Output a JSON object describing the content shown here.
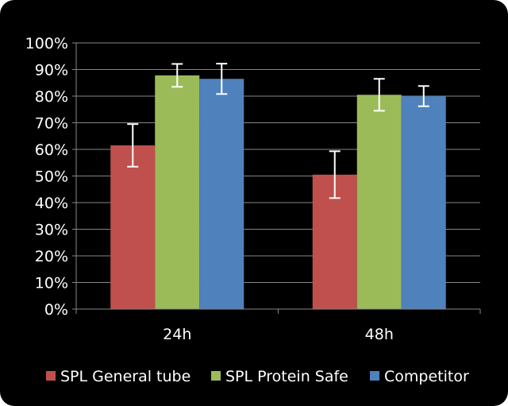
{
  "chart_data": {
    "type": "bar",
    "categories": [
      "24h",
      "48h"
    ],
    "series": [
      {
        "name": "SPL General tube",
        "color": "#c0504d",
        "values": [
          61.5,
          50.5
        ],
        "errors": [
          8.0,
          8.8
        ]
      },
      {
        "name": "SPL Protein Safe",
        "color": "#9bbb59",
        "values": [
          87.8,
          80.5
        ],
        "errors": [
          4.3,
          6.0
        ]
      },
      {
        "name": "Competitor",
        "color": "#4f81bd",
        "values": [
          86.5,
          80.0
        ],
        "errors": [
          5.7,
          3.8
        ]
      }
    ],
    "y_ticks": [
      "0%",
      "10%",
      "20%",
      "30%",
      "40%",
      "50%",
      "60%",
      "70%",
      "80%",
      "90%",
      "100%"
    ],
    "ylim": [
      0,
      100
    ],
    "title": "",
    "xlabel": "",
    "ylabel": "",
    "grid": true,
    "legend_position": "bottom",
    "colors": {
      "background": "#000000",
      "grid": "#868686",
      "text": "#ffffff",
      "error_bar": "#ffffff"
    }
  }
}
